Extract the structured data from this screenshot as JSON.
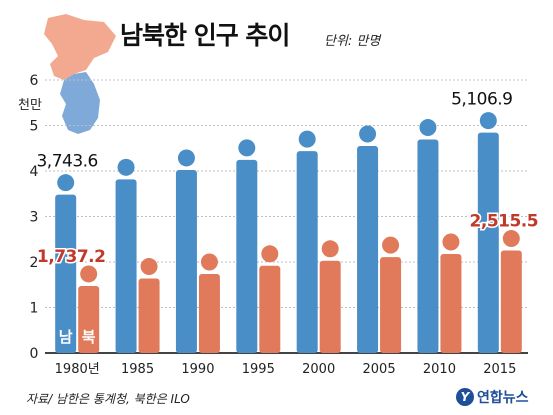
{
  "header": {
    "title": "남북한 인구 추이",
    "unit": "단위: 만명"
  },
  "footer": {
    "source": "자료/ 남한은 통계청, 북한은 ILO",
    "logo_text": "연합뉴스",
    "logo_mark": "Y"
  },
  "colors": {
    "south": "#4a8ec8",
    "north": "#e07a5a",
    "map_north": "#f2a98f",
    "map_south": "#7ea9d8",
    "grid": "#bfbfbf",
    "north_label": "#c0392b"
  },
  "chart_data": {
    "type": "bar",
    "categories": [
      "1980년",
      "1985",
      "1990",
      "1995",
      "2000",
      "2005",
      "2010",
      "2015"
    ],
    "series": [
      {
        "name": "남",
        "values": [
          3743.6,
          4081,
          4287,
          4509,
          4701,
          4814,
          4955,
          5106.9
        ]
      },
      {
        "name": "북",
        "values": [
          1737.2,
          1900,
          2000,
          2180,
          2290,
          2370,
          2440,
          2515.5
        ]
      }
    ],
    "yticks": [
      "0",
      "1",
      "2",
      "3",
      "4",
      "5",
      "6"
    ],
    "ylabel": "천만",
    "ylim": [
      0,
      6000
    ],
    "data_labels": [
      {
        "series": 0,
        "index": 0,
        "text": "3,743.6"
      },
      {
        "series": 1,
        "index": 0,
        "text": "1,737.2"
      },
      {
        "series": 0,
        "index": 7,
        "text": "5,106.9"
      },
      {
        "series": 1,
        "index": 7,
        "text": "2,515.5"
      }
    ],
    "grid": true,
    "legend": "inside-bottom-left"
  }
}
